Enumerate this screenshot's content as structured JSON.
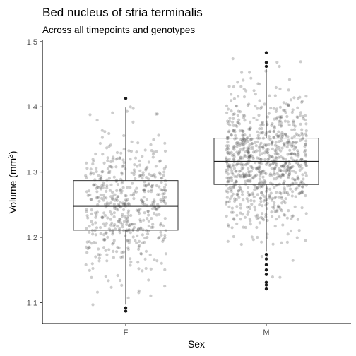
{
  "chart_data": {
    "type": "boxplot",
    "title": "Bed nucleus of stria terminalis",
    "subtitle": "Across all timepoints and genotypes",
    "xlabel": "Sex",
    "ylabel_main": "Volume (mm",
    "ylabel_sup": "3",
    "ylabel_close": ")",
    "ylim": [
      1.068,
      1.502
    ],
    "yticks": [
      1.1,
      1.2,
      1.3,
      1.4,
      1.5
    ],
    "ytick_labels": [
      "1.1",
      "1.2",
      "1.3",
      "1.4",
      "1.5"
    ],
    "categories": [
      "F",
      "M"
    ],
    "groups": [
      {
        "category": "F",
        "q1": 1.211,
        "median": 1.248,
        "q3": 1.287,
        "whisker_low": 1.097,
        "whisker_high": 1.399,
        "outliers": [
          1.413,
          1.092,
          1.087
        ],
        "jitter": {
          "n": 520,
          "mean": 1.249,
          "sd": 0.055,
          "min": 1.088,
          "max": 1.412
        }
      },
      {
        "category": "M",
        "q1": 1.281,
        "median": 1.316,
        "q3": 1.352,
        "whisker_low": 1.178,
        "whisker_high": 1.458,
        "outliers": [
          1.483,
          1.468,
          1.462,
          1.174,
          1.167,
          1.158,
          1.15,
          1.143,
          1.131,
          1.127,
          1.121
        ],
        "jitter": {
          "n": 860,
          "mean": 1.316,
          "sd": 0.054,
          "min": 1.12,
          "max": 1.484
        }
      }
    ],
    "grid": false,
    "legend": "none"
  }
}
